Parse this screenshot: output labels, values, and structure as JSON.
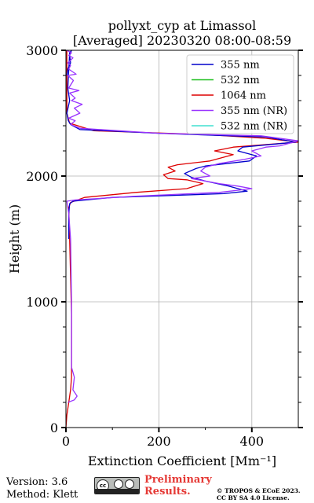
{
  "chart_data": {
    "type": "line",
    "title_line1": "pollyxt_cyp at Limassol",
    "title_line2": "[Averaged] 20230320 08:00-08:59",
    "xlabel": "Extinction Coefficient [Mm⁻¹]",
    "ylabel": "Height (m)",
    "xlim": [
      0,
      500
    ],
    "ylim": [
      0,
      3000
    ],
    "xticks": [
      0,
      200,
      400
    ],
    "yticks": [
      0,
      1000,
      2000,
      3000
    ],
    "grid": true,
    "legend_position": "top-right",
    "series": [
      {
        "name": "355 nm",
        "color": "#0000cc",
        "points": [
          [
            2,
            2800
          ],
          [
            4,
            2850
          ],
          [
            10,
            2900
          ],
          [
            8,
            2960
          ],
          [
            12,
            3000
          ],
          [
            8,
            2980
          ],
          [
            4,
            2700
          ],
          [
            8,
            2600
          ],
          [
            2,
            2500
          ],
          [
            5,
            2440
          ],
          [
            10,
            2410
          ],
          [
            30,
            2370
          ],
          [
            200,
            2340
          ],
          [
            430,
            2310
          ],
          [
            495,
            2270
          ],
          [
            380,
            2230
          ],
          [
            370,
            2200
          ],
          [
            410,
            2160
          ],
          [
            395,
            2120
          ],
          [
            300,
            2080
          ],
          [
            280,
            2060
          ],
          [
            255,
            2020
          ],
          [
            270,
            1990
          ],
          [
            300,
            1960
          ],
          [
            350,
            1920
          ],
          [
            390,
            1880
          ],
          [
            340,
            1860
          ],
          [
            100,
            1830
          ],
          [
            15,
            1800
          ],
          [
            8,
            1780
          ],
          [
            6,
            1700
          ],
          [
            6,
            1500
          ]
        ]
      },
      {
        "name": "532 nm",
        "color": "#1fbf1f",
        "points": []
      },
      {
        "name": "1064 nm",
        "color": "#dd0000",
        "points": [
          [
            2,
            3000
          ],
          [
            2,
            2500
          ],
          [
            8,
            2420
          ],
          [
            60,
            2360
          ],
          [
            300,
            2330
          ],
          [
            430,
            2300
          ],
          [
            500,
            2270
          ],
          [
            360,
            2230
          ],
          [
            320,
            2200
          ],
          [
            360,
            2170
          ],
          [
            310,
            2120
          ],
          [
            240,
            2090
          ],
          [
            220,
            2070
          ],
          [
            235,
            2040
          ],
          [
            210,
            2010
          ],
          [
            220,
            1980
          ],
          [
            260,
            1970
          ],
          [
            295,
            1940
          ],
          [
            260,
            1900
          ],
          [
            150,
            1870
          ],
          [
            40,
            1830
          ],
          [
            10,
            1790
          ],
          [
            6,
            1750
          ],
          [
            8,
            1500
          ],
          [
            10,
            1200
          ],
          [
            12,
            900
          ],
          [
            12,
            600
          ],
          [
            12,
            400
          ],
          [
            10,
            300
          ],
          [
            6,
            200
          ],
          [
            2,
            100
          ],
          [
            0,
            0
          ]
        ]
      },
      {
        "name": "355 nm (NR)",
        "color": "#9933ff",
        "points": [
          [
            2,
            3000
          ],
          [
            12,
            2980
          ],
          [
            6,
            2960
          ],
          [
            15,
            2940
          ],
          [
            4,
            2900
          ],
          [
            10,
            2880
          ],
          [
            6,
            2850
          ],
          [
            22,
            2810
          ],
          [
            4,
            2800
          ],
          [
            16,
            2760
          ],
          [
            6,
            2700
          ],
          [
            28,
            2680
          ],
          [
            8,
            2660
          ],
          [
            20,
            2620
          ],
          [
            12,
            2600
          ],
          [
            35,
            2570
          ],
          [
            18,
            2540
          ],
          [
            30,
            2500
          ],
          [
            6,
            2460
          ],
          [
            20,
            2440
          ],
          [
            10,
            2410
          ],
          [
            30,
            2380
          ],
          [
            200,
            2340
          ],
          [
            420,
            2320
          ],
          [
            500,
            2280
          ],
          [
            460,
            2240
          ],
          [
            430,
            2230
          ],
          [
            400,
            2200
          ],
          [
            420,
            2160
          ],
          [
            380,
            2130
          ],
          [
            330,
            2100
          ],
          [
            300,
            2070
          ],
          [
            290,
            2040
          ],
          [
            310,
            2000
          ],
          [
            270,
            1980
          ],
          [
            330,
            1940
          ],
          [
            370,
            1920
          ],
          [
            400,
            1900
          ],
          [
            330,
            1870
          ],
          [
            150,
            1840
          ],
          [
            20,
            1810
          ],
          [
            2,
            1800
          ],
          [
            6,
            1700
          ],
          [
            10,
            1500
          ],
          [
            12,
            1000
          ],
          [
            12,
            600
          ],
          [
            12,
            480
          ],
          [
            18,
            400
          ],
          [
            15,
            300
          ],
          [
            24,
            250
          ],
          [
            18,
            220
          ],
          [
            4,
            200
          ]
        ]
      },
      {
        "name": "532 nm (NR)",
        "color": "#40e0d0",
        "points": []
      }
    ]
  },
  "footer": {
    "version": "Version: 3.6",
    "method": "Method: Klett",
    "prelim_line1": "Preliminary",
    "prelim_line2": "Results.",
    "copyright_line1": "© TROPOS & ECoE 2023.",
    "copyright_line2": "CC BY SA 4.0 License."
  }
}
